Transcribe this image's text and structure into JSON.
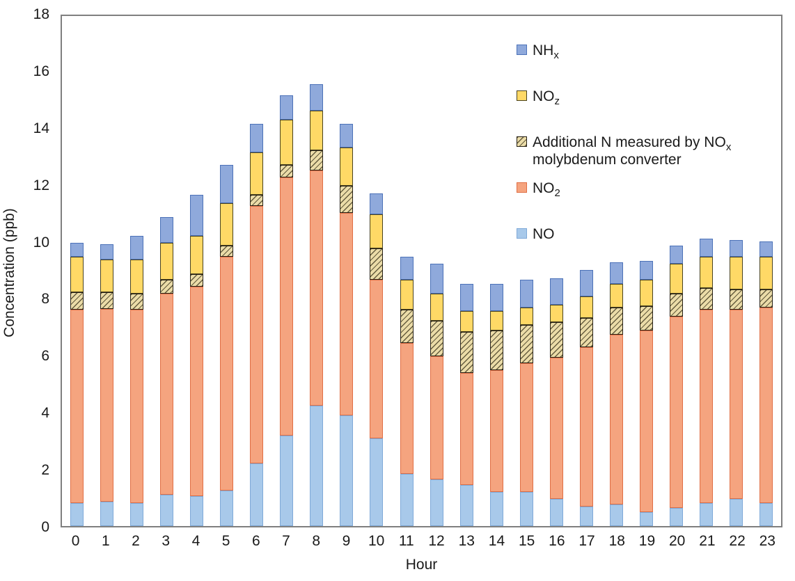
{
  "chart_data": {
    "type": "bar",
    "stacked": true,
    "title": "",
    "xlabel": "Hour",
    "ylabel": "Concentration (ppb)",
    "ylim": [
      0,
      18
    ],
    "yticks": [
      0,
      2,
      4,
      6,
      8,
      10,
      12,
      14,
      16,
      18
    ],
    "grid": false,
    "legend_position": "inside-top-right",
    "categories": [
      "0",
      "1",
      "2",
      "3",
      "4",
      "5",
      "6",
      "7",
      "8",
      "9",
      "10",
      "11",
      "12",
      "13",
      "14",
      "15",
      "16",
      "17",
      "18",
      "19",
      "20",
      "21",
      "22",
      "23"
    ],
    "series": [
      {
        "name": "NO",
        "fill": "#A8C9EA",
        "border": "#7FA9D8",
        "pattern": "none",
        "values": [
          0.8,
          0.85,
          0.8,
          1.1,
          1.05,
          1.25,
          2.2,
          3.2,
          4.25,
          3.9,
          3.1,
          1.85,
          1.65,
          1.45,
          1.2,
          1.2,
          0.95,
          0.7,
          0.75,
          0.5,
          0.65,
          0.8,
          0.95,
          0.8
        ]
      },
      {
        "name": "NO2",
        "fill": "#F5A47F",
        "border": "#E06F45",
        "pattern": "none",
        "values": [
          6.85,
          6.8,
          6.85,
          7.1,
          7.4,
          8.25,
          9.1,
          9.1,
          8.3,
          7.15,
          5.6,
          4.6,
          4.35,
          3.95,
          4.3,
          4.55,
          5.0,
          5.6,
          6.0,
          6.4,
          6.75,
          6.85,
          6.7,
          6.9
        ]
      },
      {
        "name": "Additional N measured by NOx molybdenum converter",
        "fill": "#EBDCA8",
        "border": "#262015",
        "pattern": "diagonal",
        "values": [
          0.6,
          0.6,
          0.55,
          0.5,
          0.45,
          0.4,
          0.4,
          0.45,
          0.7,
          0.95,
          1.1,
          1.2,
          1.25,
          1.45,
          1.4,
          1.35,
          1.25,
          1.05,
          0.95,
          0.85,
          0.8,
          0.75,
          0.7,
          0.65
        ]
      },
      {
        "name": "NOz",
        "fill": "#FFD966",
        "border": "#4A431F",
        "pattern": "none",
        "values": [
          1.25,
          1.15,
          1.2,
          1.3,
          1.35,
          1.5,
          1.5,
          1.6,
          1.4,
          1.35,
          1.2,
          1.05,
          0.95,
          0.75,
          0.7,
          0.6,
          0.6,
          0.75,
          0.85,
          0.95,
          1.05,
          1.1,
          1.15,
          1.15
        ]
      },
      {
        "name": "NHx",
        "fill": "#8FA9DB",
        "border": "#4C72B8",
        "pattern": "none",
        "values": [
          0.5,
          0.55,
          0.85,
          0.9,
          1.45,
          1.35,
          1.0,
          0.85,
          0.95,
          0.85,
          0.75,
          0.8,
          1.05,
          0.95,
          0.95,
          1.0,
          0.95,
          0.95,
          0.75,
          0.65,
          0.65,
          0.65,
          0.6,
          0.55
        ]
      }
    ],
    "stack_order_bottom_to_top": [
      "NO",
      "NO2",
      "Additional N measured by NOx molybdenum converter",
      "NOz",
      "NHx"
    ]
  },
  "legend": {
    "items": [
      {
        "pre": "NH",
        "sub": "x",
        "line2": "",
        "series_index": 4
      },
      {
        "pre": "NO",
        "sub": "z",
        "line2": "",
        "series_index": 3
      },
      {
        "pre": "Additional N measured by NO",
        "sub": "x",
        "line2": "molybdenum converter",
        "series_index": 2
      },
      {
        "pre": "NO",
        "sub": "2",
        "line2": "",
        "series_index": 1
      },
      {
        "pre": "NO",
        "sub": "",
        "line2": "",
        "series_index": 0
      }
    ]
  }
}
